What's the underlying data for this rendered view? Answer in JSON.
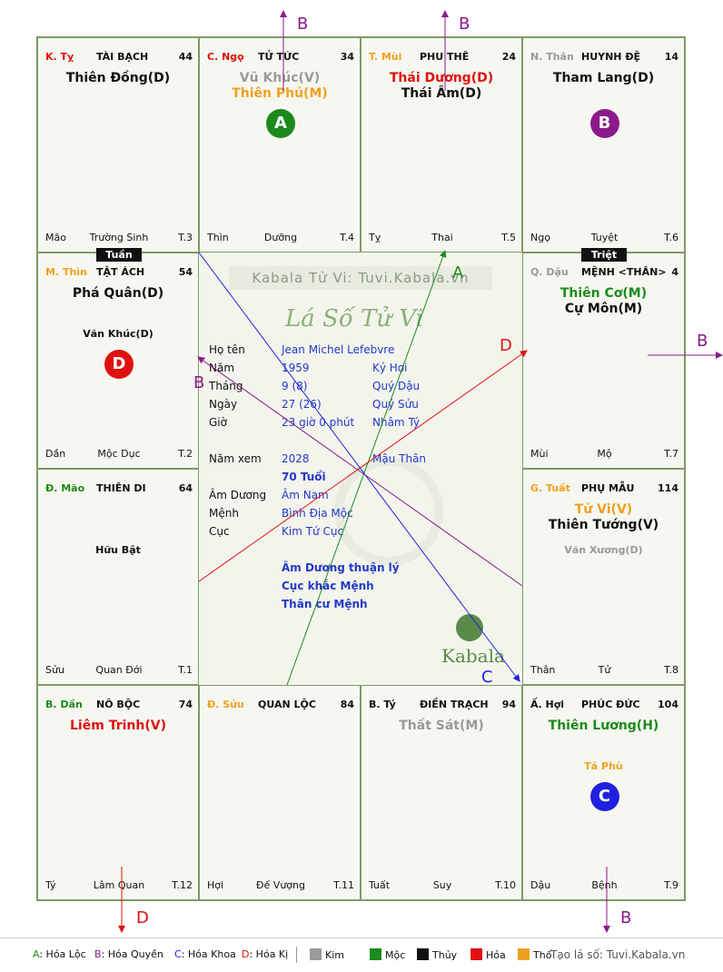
{
  "colors": {
    "hoa_loc": "#1d8a1d",
    "hoa_quyen": "#8a1a8a",
    "hoa_khoa": "#2020e0",
    "hoa_ki": "#e01010",
    "orange": "#f0a020",
    "grey": "#9a9a9a"
  },
  "cells": [
    {
      "id": "ty",
      "can": "K. Tỵ",
      "can_color": "#e01010",
      "palace": "TÀI BẠCH",
      "age": "44",
      "stars": [
        {
          "text": "Thiên Đồng(D)",
          "color": "#111"
        }
      ],
      "base": "Mão",
      "stage": "Trường Sinh",
      "tnum": "T.3"
    },
    {
      "id": "ngo",
      "can": "C. Ngọ",
      "can_color": "#e01010",
      "palace": "TỬ TỨC",
      "age": "34",
      "stars": [
        {
          "text": "Vũ Khúc(V)",
          "color": "#9a9a9a"
        },
        {
          "text": "Thiên Phủ(M)",
          "color": "#f0a020"
        }
      ],
      "base": "Thìn",
      "stage": "Dưỡng",
      "tnum": "T.4",
      "circle": {
        "label": "A",
        "color": "#1d8a1d"
      }
    },
    {
      "id": "mui",
      "can": "T. Mùi",
      "can_color": "#f0a020",
      "palace": "PHU THÊ",
      "age": "24",
      "stars": [
        {
          "text": "Thái Dương(D)",
          "color": "#e01010"
        },
        {
          "text": "Thái Âm(D)",
          "color": "#111"
        }
      ],
      "base": "Tỵ",
      "stage": "Thai",
      "tnum": "T.5"
    },
    {
      "id": "than",
      "can": "N. Thân",
      "can_color": "#9a9a9a",
      "palace": "HUYNH ĐỆ",
      "age": "14",
      "stars": [
        {
          "text": "Tham Lang(D)",
          "color": "#111"
        }
      ],
      "base": "Ngọ",
      "stage": "Tuyệt",
      "tnum": "T.6",
      "circle": {
        "label": "B",
        "color": "#8a1a8a"
      }
    },
    {
      "id": "thin",
      "can": "M. Thìn",
      "can_color": "#f0a020",
      "palace": "TẬT ÁCH",
      "age": "54",
      "stars": [
        {
          "text": "Phá Quân(D)",
          "color": "#111"
        }
      ],
      "minor": [
        {
          "text": "Văn Khúc(D)",
          "color": "#111"
        }
      ],
      "base": "Dần",
      "stage": "Mộc Dục",
      "tnum": "T.2",
      "circle": {
        "label": "D",
        "color": "#e01010"
      }
    },
    {
      "id": "dau",
      "can": "Q. Dậu",
      "can_color": "#9a9a9a",
      "palace": "MỆNH <THÂN>",
      "age": "4",
      "stars": [
        {
          "text": "Thiên Cơ(M)",
          "color": "#1d8a1d"
        },
        {
          "text": "Cự Môn(M)",
          "color": "#111"
        }
      ],
      "base": "Mùi",
      "stage": "Mộ",
      "tnum": "T.7"
    },
    {
      "id": "mao",
      "can": "Đ. Mão",
      "can_color": "#1d8a1d",
      "palace": "THIÊN DI",
      "age": "64",
      "stars": [],
      "minor": [
        {
          "text": "Hữu Bật",
          "color": "#111"
        }
      ],
      "base": "Sửu",
      "stage": "Quan Đới",
      "tnum": "T.1"
    },
    {
      "id": "tuat",
      "can": "G. Tuất",
      "can_color": "#f0a020",
      "palace": "PHỤ MẪU",
      "age": "114",
      "stars": [
        {
          "text": "Tử Vi(V)",
          "color": "#f0a020"
        },
        {
          "text": "Thiên Tướng(V)",
          "color": "#111"
        }
      ],
      "minor": [
        {
          "text": "Văn Xương(D)",
          "color": "#9a9a9a"
        }
      ],
      "base": "Thân",
      "stage": "Tử",
      "tnum": "T.8"
    },
    {
      "id": "dan",
      "can": "B. Dần",
      "can_color": "#1d8a1d",
      "palace": "NÔ BỘC",
      "age": "74",
      "stars": [
        {
          "text": "Liêm Trinh(V)",
          "color": "#e01010"
        }
      ],
      "base": "Tý",
      "stage": "Lâm Quan",
      "tnum": "T.12"
    },
    {
      "id": "suu",
      "can": "Đ. Sửu",
      "can_color": "#f0a020",
      "palace": "QUAN LỘC",
      "age": "84",
      "stars": [],
      "base": "Hợi",
      "stage": "Đế Vượng",
      "tnum": "T.11"
    },
    {
      "id": "tyy",
      "can": "B. Tý",
      "can_color": "#111",
      "palace": "ĐIỀN TRẠCH",
      "age": "94",
      "stars": [
        {
          "text": "Thất Sát(M)",
          "color": "#9a9a9a"
        }
      ],
      "base": "Tuất",
      "stage": "Suy",
      "tnum": "T.10"
    },
    {
      "id": "hoi",
      "can": "Ấ. Hợi",
      "can_color": "#111",
      "palace": "PHÚC ĐỨC",
      "age": "104",
      "stars": [
        {
          "text": "Thiên Lương(H)",
          "color": "#1d8a1d"
        }
      ],
      "minor": [
        {
          "text": "Tả Phù",
          "color": "#f0a020"
        }
      ],
      "base": "Dậu",
      "stage": "Bệnh",
      "tnum": "T.9",
      "circle": {
        "label": "C",
        "color": "#2020e0"
      }
    }
  ],
  "tags": {
    "tuan": "Tuần",
    "triet": "Triệt"
  },
  "center": {
    "kabala": "Kabala Tử Vi: Tuvi.Kabala.vn",
    "title": "Lá Số Tử Vi",
    "rows": [
      {
        "k": "Họ tên",
        "v": "Jean Michel Lefebvre",
        "w": ""
      },
      {
        "k": "Năm",
        "v": "1959",
        "w": "Kỷ Hợi"
      },
      {
        "k": "Tháng",
        "v": "9  (8)",
        "w": "Quý Dậu"
      },
      {
        "k": "Ngày",
        "v": "27  (26)",
        "w": "Quý Sửu"
      },
      {
        "k": "Giờ",
        "v": "23 giờ 0 phút",
        "w": "Nhâm Tý"
      }
    ],
    "nam_xem": {
      "k": "Năm xem",
      "v": "2028",
      "w": "Mậu Thân"
    },
    "tuoi": "70 Tuổi",
    "rows2": [
      {
        "k": "Âm Dương",
        "v": "Âm Nam"
      },
      {
        "k": "Mệnh",
        "v": "Bình Địa Mộc"
      },
      {
        "k": "Cục",
        "v": "Kim Tứ Cục"
      }
    ],
    "notes": [
      "Âm Dương thuận lý",
      "Cục khắc Mệnh",
      "Thân cư Mệnh"
    ],
    "logo": "Kabala"
  },
  "arrow_labels": [
    "B",
    "B",
    "A",
    "D",
    "B",
    "C",
    "B",
    "D",
    "B"
  ],
  "legend": {
    "items": [
      {
        "key": "A",
        "label": ": Hóa Lộc",
        "color": "#1d8a1d"
      },
      {
        "key": "B",
        "label": ": Hóa Quyền",
        "color": "#8a1a8a"
      },
      {
        "key": "C",
        "label": ": Hóa Khoa",
        "color": "#2020e0"
      },
      {
        "key": "D",
        "label": ": Hóa Kị",
        "color": "#e01010"
      }
    ],
    "elements": [
      {
        "label": "Kim",
        "color": "#9a9a9a"
      },
      {
        "label": "Mộc",
        "color": "#1d8a1d"
      },
      {
        "label": "Thủy",
        "color": "#111111"
      },
      {
        "label": "Hỏa",
        "color": "#e01010"
      },
      {
        "label": "Thổ",
        "color": "#f0a020"
      }
    ],
    "site": "Tạo lá số: Tuvi.Kabala.vn"
  }
}
